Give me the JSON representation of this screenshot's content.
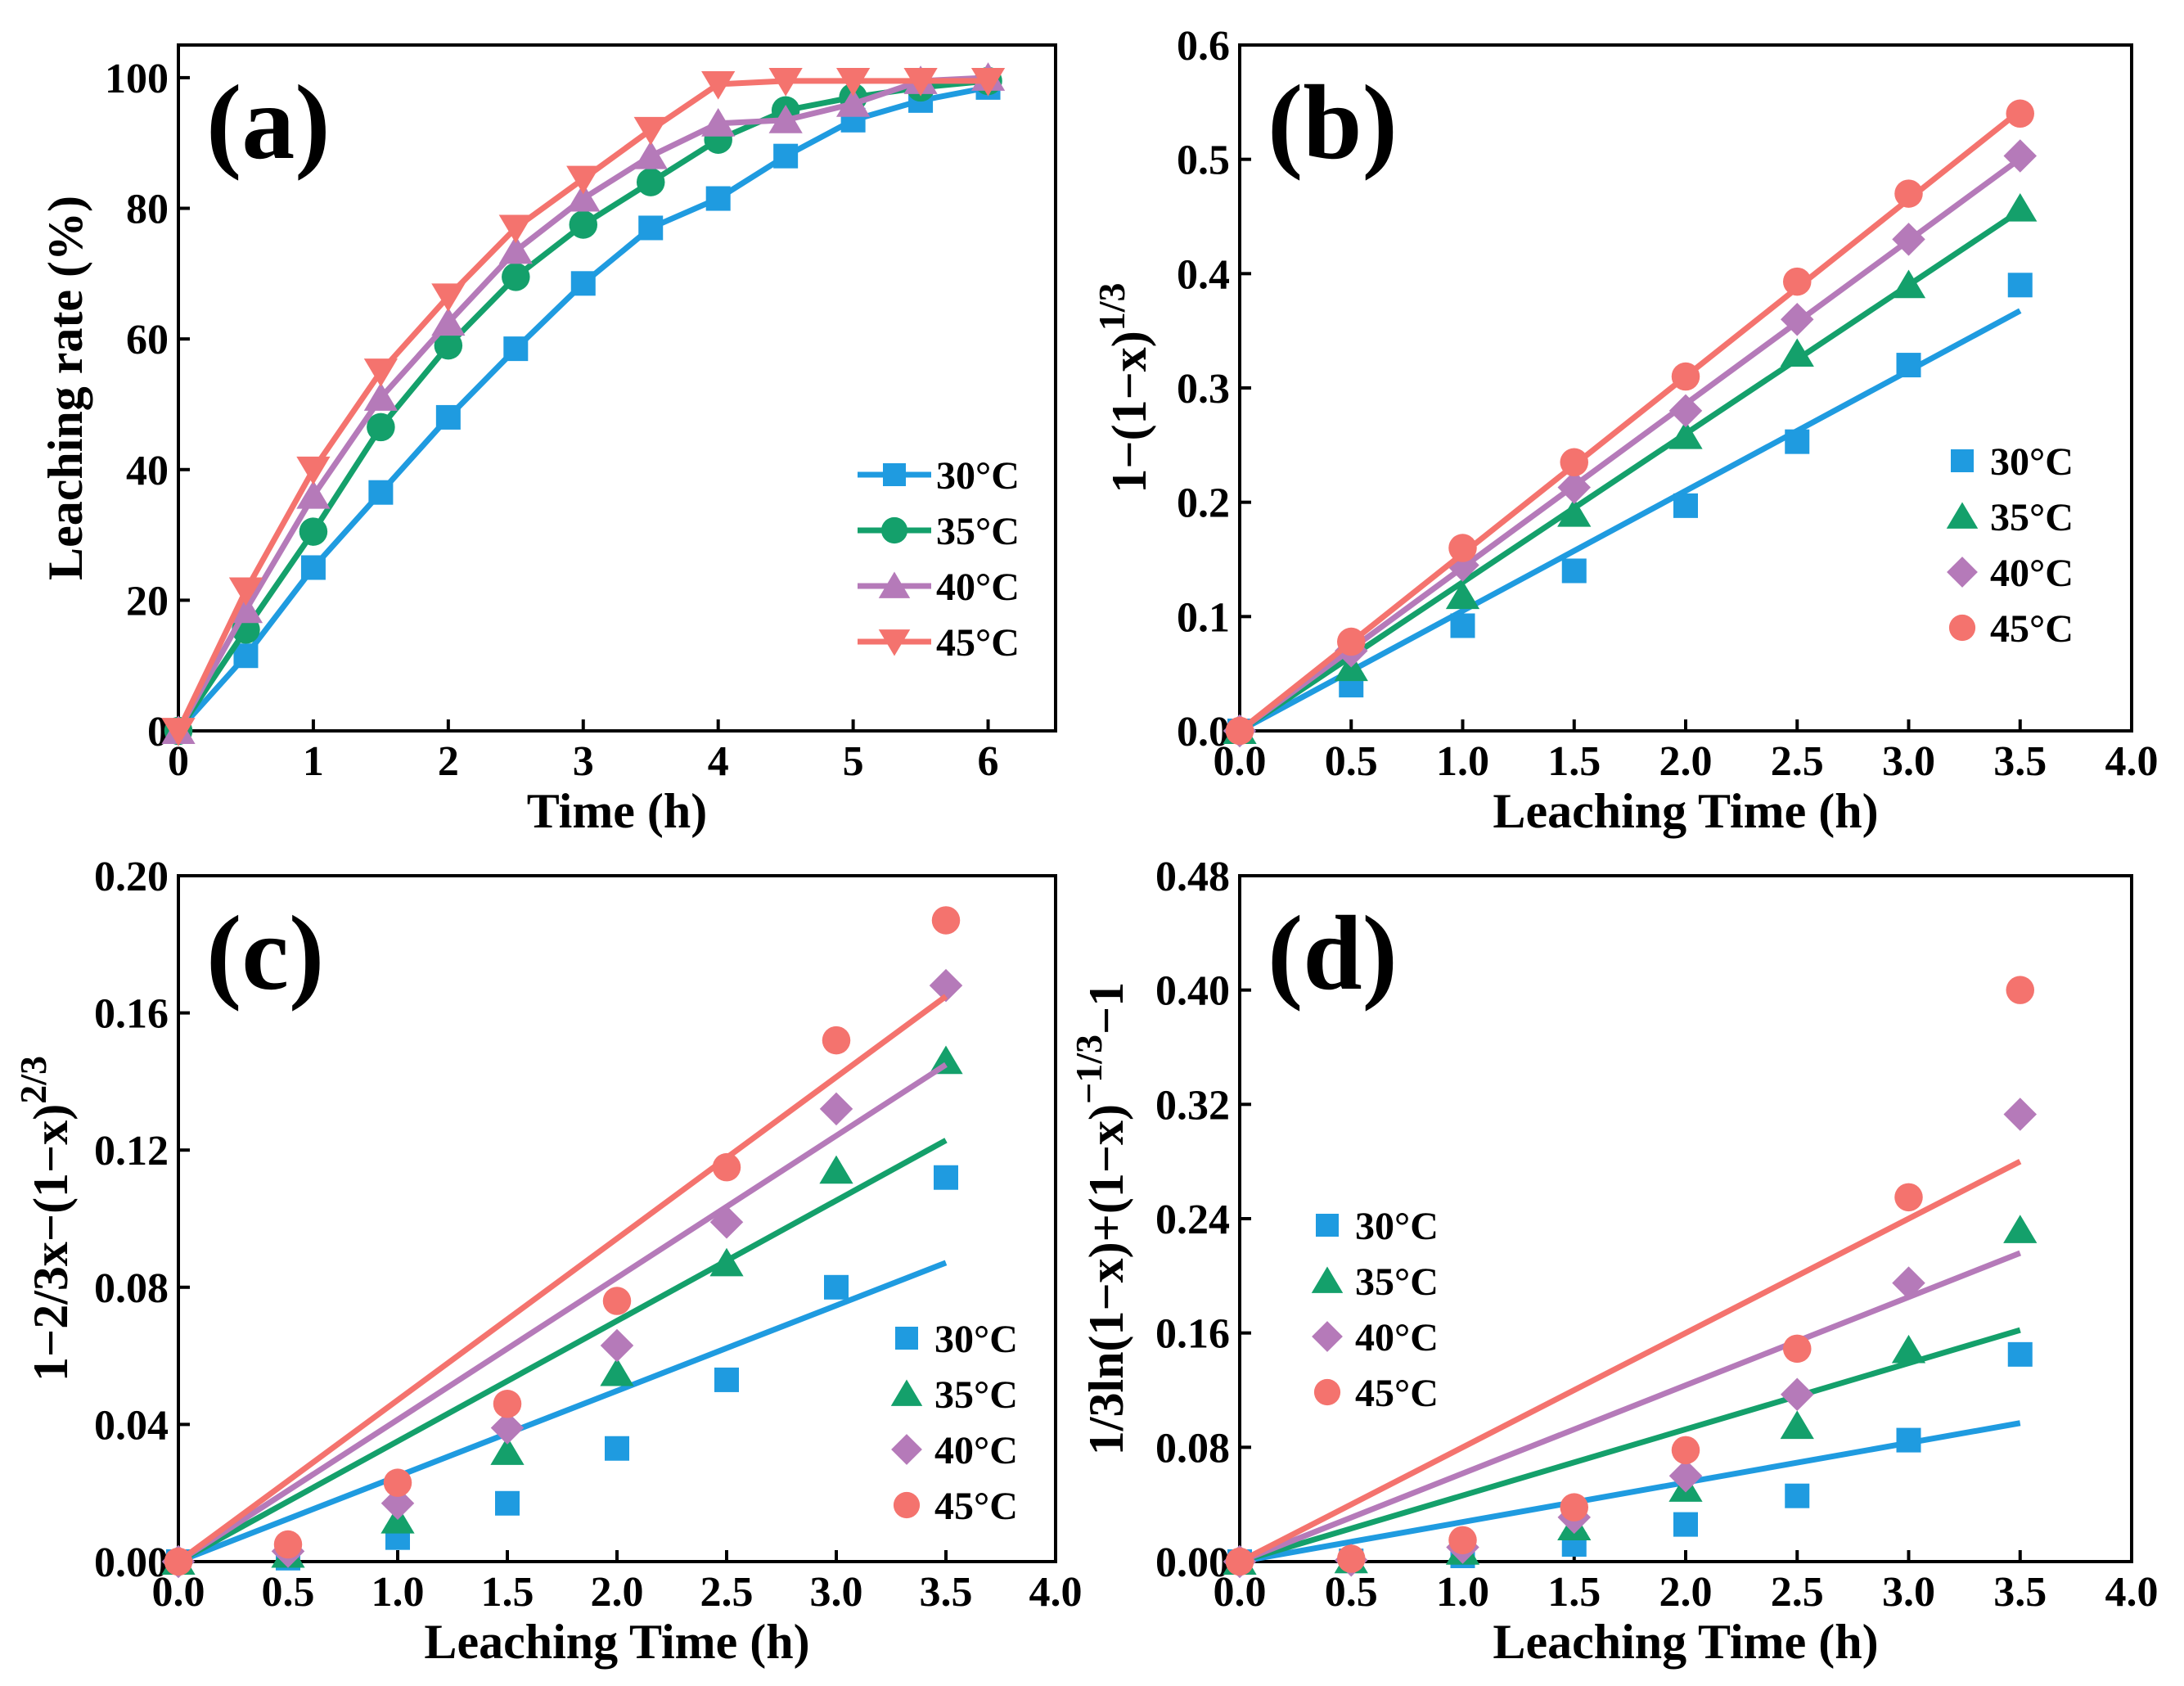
{
  "colors": {
    "c30": "#1f9be0",
    "c35": "#14a06b",
    "c40": "#b57ab9",
    "c45": "#f4736e"
  },
  "chart_data": [
    {
      "id": "a",
      "type": "line",
      "panel_label": "(a)",
      "xlabel": "Time (h)",
      "ylabel": "Leaching rate (%)",
      "xlim": [
        0,
        6.5
      ],
      "ylim": [
        0,
        105
      ],
      "xticks": [
        0,
        1,
        2,
        3,
        4,
        5,
        6
      ],
      "xtick_labels": [
        "0",
        "1",
        "2",
        "3",
        "4",
        "5",
        "6"
      ],
      "yticks": [
        0,
        20,
        40,
        60,
        80,
        100
      ],
      "ytick_labels": [
        "0",
        "20",
        "40",
        "60",
        "80",
        "100"
      ],
      "legend_position": "right-middle",
      "x": [
        0,
        0.5,
        1,
        1.5,
        2,
        2.5,
        3,
        3.5,
        4,
        4.5,
        5,
        5.5,
        6
      ],
      "series": [
        {
          "name": "30°C",
          "marker": "square",
          "color": "#1f9be0",
          "values": [
            0,
            11.5,
            25,
            36.5,
            48,
            58.5,
            68.5,
            77,
            81.5,
            88,
            93.5,
            96.5,
            98.5
          ]
        },
        {
          "name": "35°C",
          "marker": "circle",
          "color": "#14a06b",
          "values": [
            0,
            15.5,
            30.5,
            46.5,
            59,
            69.5,
            77.5,
            84,
            90.5,
            95,
            97,
            98.5,
            99.5
          ]
        },
        {
          "name": "40°C",
          "marker": "triangle-up",
          "color": "#b57ab9",
          "values": [
            0,
            18.5,
            36,
            51,
            62.5,
            73.5,
            81.5,
            88,
            93,
            93.5,
            96,
            99.5,
            100
          ]
        },
        {
          "name": "45°C",
          "marker": "triangle-down",
          "color": "#f4736e",
          "values": [
            0,
            21.5,
            40,
            55,
            66.5,
            77,
            84.5,
            92,
            99,
            99.5,
            99.5,
            99.5,
            99.5
          ]
        }
      ]
    },
    {
      "id": "b",
      "type": "scatter",
      "panel_label": "(b)",
      "xlabel": "Leaching Time (h)",
      "ylabel_main": "1−(1−x)",
      "ylabel_sup": "1/3",
      "xlim": [
        0,
        4.0
      ],
      "ylim": [
        0,
        0.6
      ],
      "xticks": [
        0,
        0.5,
        1.0,
        1.5,
        2.0,
        2.5,
        3.0,
        3.5,
        4.0
      ],
      "xtick_labels": [
        "0.0",
        "0.5",
        "1.0",
        "1.5",
        "2.0",
        "2.5",
        "3.0",
        "3.5",
        "4.0"
      ],
      "yticks": [
        0,
        0.1,
        0.2,
        0.3,
        0.4,
        0.5,
        0.6
      ],
      "ytick_labels": [
        "0.0",
        "0.1",
        "0.2",
        "0.3",
        "0.4",
        "0.5",
        "0.6"
      ],
      "legend_position": "right-middle",
      "x": [
        0,
        0.5,
        1.0,
        1.5,
        2.0,
        2.5,
        3.0,
        3.5
      ],
      "series": [
        {
          "name": "30°C",
          "marker": "square",
          "color": "#1f9be0",
          "values": [
            0,
            0.04,
            0.092,
            0.14,
            0.197,
            0.253,
            0.32,
            0.39
          ],
          "fit_slope": 0.105
        },
        {
          "name": "35°C",
          "marker": "triangle-up",
          "color": "#14a06b",
          "values": [
            0,
            0.055,
            0.118,
            0.19,
            0.258,
            0.33,
            0.39,
            0.457
          ],
          "fit_slope": 0.13
        },
        {
          "name": "40°C",
          "marker": "diamond",
          "color": "#b57ab9",
          "values": [
            0,
            0.07,
            0.145,
            0.213,
            0.28,
            0.36,
            0.43,
            0.503
          ],
          "fit_slope": 0.143
        },
        {
          "name": "45°C",
          "marker": "circle",
          "color": "#f4736e",
          "values": [
            0,
            0.078,
            0.16,
            0.235,
            0.31,
            0.393,
            0.47,
            0.54
          ],
          "fit_slope": 0.155
        }
      ]
    },
    {
      "id": "c",
      "type": "scatter",
      "panel_label": "(c)",
      "xlabel": "Leaching Time (h)",
      "ylabel_main": "1−2/3x−(1−x)",
      "ylabel_sup": "2/3",
      "xlim": [
        0,
        4.0
      ],
      "ylim": [
        0,
        0.2
      ],
      "xticks": [
        0,
        0.5,
        1.0,
        1.5,
        2.0,
        2.5,
        3.0,
        3.5,
        4.0
      ],
      "xtick_labels": [
        "0.0",
        "0.5",
        "1.0",
        "1.5",
        "2.0",
        "2.5",
        "3.0",
        "3.5",
        "4.0"
      ],
      "yticks": [
        0,
        0.04,
        0.08,
        0.12,
        0.16,
        0.2
      ],
      "ytick_labels": [
        "0.00",
        "0.04",
        "0.08",
        "0.12",
        "0.16",
        "0.20"
      ],
      "legend_position": "bottom-right",
      "x": [
        0,
        0.5,
        1.0,
        1.5,
        2.0,
        2.5,
        3.0,
        3.5
      ],
      "series": [
        {
          "name": "30°C",
          "marker": "square",
          "color": "#1f9be0",
          "values": [
            0,
            0.001,
            0.007,
            0.017,
            0.033,
            0.053,
            0.08,
            0.112
          ],
          "fit_slope": 0.0249
        },
        {
          "name": "35°C",
          "marker": "triangle-up",
          "color": "#14a06b",
          "values": [
            0,
            0.002,
            0.012,
            0.032,
            0.055,
            0.087,
            0.114,
            0.146
          ],
          "fit_slope": 0.0351
        },
        {
          "name": "40°C",
          "marker": "diamond",
          "color": "#b57ab9",
          "values": [
            0,
            0.003,
            0.017,
            0.039,
            0.063,
            0.099,
            0.132,
            0.168
          ],
          "fit_slope": 0.0414
        },
        {
          "name": "45°C",
          "marker": "circle",
          "color": "#f4736e",
          "values": [
            0,
            0.005,
            0.023,
            0.046,
            0.076,
            0.115,
            0.152,
            0.187
          ],
          "fit_slope": 0.0471
        }
      ]
    },
    {
      "id": "d",
      "type": "scatter",
      "panel_label": "(d)",
      "xlabel": "Leaching Time (h)",
      "ylabel_main": "1/3ln(1−x)+(1−x)",
      "ylabel_sup": "−1/3",
      "ylabel_tail": "−1",
      "xlim": [
        0,
        4.0
      ],
      "ylim": [
        0,
        0.48
      ],
      "xticks": [
        0,
        0.5,
        1.0,
        1.5,
        2.0,
        2.5,
        3.0,
        3.5,
        4.0
      ],
      "xtick_labels": [
        "0.0",
        "0.5",
        "1.0",
        "1.5",
        "2.0",
        "2.5",
        "3.0",
        "3.5",
        "4.0"
      ],
      "yticks": [
        0,
        0.08,
        0.16,
        0.24,
        0.32,
        0.4,
        0.48
      ],
      "ytick_labels": [
        "0.00",
        "0.08",
        "0.16",
        "0.24",
        "0.32",
        "0.40",
        "0.48"
      ],
      "legend_position": "left-middle",
      "x": [
        0,
        0.5,
        1.0,
        1.5,
        2.0,
        2.5,
        3.0,
        3.5
      ],
      "series": [
        {
          "name": "30°C",
          "marker": "square",
          "color": "#1f9be0",
          "values": [
            0,
            0.0005,
            0.004,
            0.012,
            0.026,
            0.046,
            0.085,
            0.145
          ],
          "fit_slope": 0.0277
        },
        {
          "name": "35°C",
          "marker": "triangle-up",
          "color": "#14a06b",
          "values": [
            0,
            0.001,
            0.007,
            0.024,
            0.051,
            0.095,
            0.148,
            0.232
          ],
          "fit_slope": 0.0463
        },
        {
          "name": "40°C",
          "marker": "diamond",
          "color": "#b57ab9",
          "values": [
            0,
            0.001,
            0.01,
            0.031,
            0.06,
            0.117,
            0.195,
            0.313
          ],
          "fit_slope": 0.0617
        },
        {
          "name": "45°C",
          "marker": "circle",
          "color": "#f4736e",
          "values": [
            0,
            0.002,
            0.015,
            0.038,
            0.078,
            0.149,
            0.255,
            0.4
          ],
          "fit_slope": 0.08
        }
      ]
    }
  ]
}
